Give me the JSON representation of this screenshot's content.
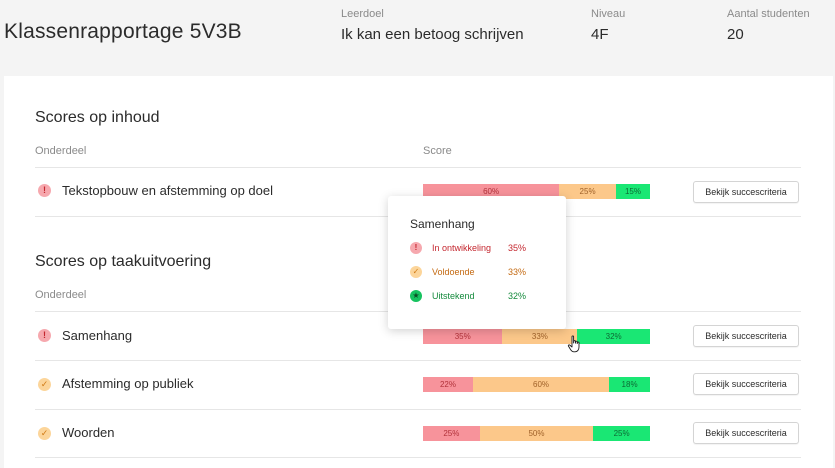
{
  "header": {
    "title": "Klassenrapportage 5V3B",
    "leerdoel_label": "Leerdoel",
    "leerdoel_value": "Ik kan een betoog schrijven",
    "niveau_label": "Niveau",
    "niveau_value": "4F",
    "students_label": "Aantal studenten",
    "students_value": "20"
  },
  "inhoud": {
    "title": "Scores op inhoud",
    "col_onderdeel": "Onderdeel",
    "col_score": "Score",
    "rows": [
      {
        "label": "Tekstopbouw en afstemming op doel",
        "status": "warning",
        "red": "60%",
        "orange": "25%",
        "green": "15%",
        "button": "Bekijk succescriteria"
      }
    ]
  },
  "taak": {
    "title": "Scores op taakuitvoering",
    "col_onderdeel": "Onderdeel",
    "rows": [
      {
        "label": "Samenhang",
        "status": "warning",
        "red": "35%",
        "orange": "33%",
        "green": "32%",
        "button": "Bekijk succescriteria"
      },
      {
        "label": "Afstemming op publiek",
        "status": "ok",
        "red": "22%",
        "orange": "60%",
        "green": "18%",
        "button": "Bekijk succescriteria"
      },
      {
        "label": "Woorden",
        "status": "ok",
        "red": "25%",
        "orange": "50%",
        "green": "25%",
        "button": "Bekijk succescriteria"
      }
    ]
  },
  "tooltip": {
    "title": "Samenhang",
    "items": [
      {
        "name": "In ontwikkeling",
        "value": "35%"
      },
      {
        "name": "Voldoende",
        "value": "33%"
      },
      {
        "name": "Uitstekend",
        "value": "32%"
      }
    ]
  },
  "icons": {
    "warning": "exclamation-icon",
    "ok": "check-icon",
    "excellent": "star-icon"
  },
  "colors": {
    "red": "#f7939b",
    "orange": "#fcc88a",
    "green": "#1ae774"
  }
}
